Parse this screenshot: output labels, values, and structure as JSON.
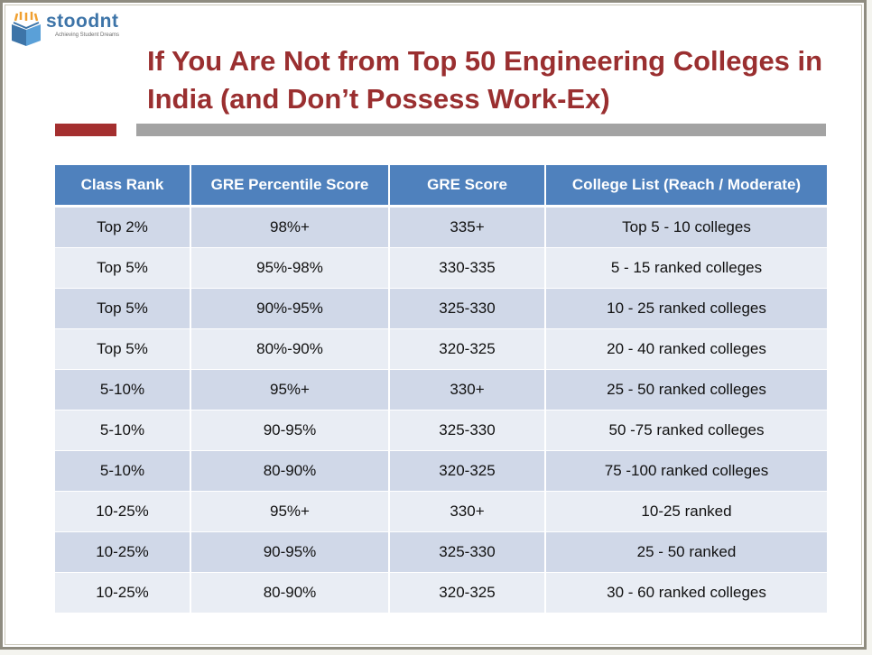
{
  "logo": {
    "name": "stoodnt",
    "tagline": "Achieving Student Dreams",
    "colors": [
      "#3d74a8",
      "#f0a030",
      "#5aa0d8"
    ]
  },
  "title": {
    "line1": "If You Are Not from Top 50 Engineering Colleges in",
    "line2": "India (and Don’t Possess Work-Ex)"
  },
  "colors": {
    "title": "#9a2f30",
    "accent_bar": "#a42f2f",
    "divider_bar": "#a3a3a3",
    "header_bg": "#4f81bd",
    "row_odd": "#d0d8e8",
    "row_even": "#e9edf4"
  },
  "table": {
    "headers": [
      "Class Rank",
      "GRE Percentile Score",
      "GRE Score",
      "College List (Reach / Moderate)"
    ],
    "rows": [
      [
        "Top 2%",
        "98%+",
        "335+",
        "Top 5 - 10 colleges"
      ],
      [
        "Top 5%",
        "95%-98%",
        "330-335",
        "5 - 15 ranked colleges"
      ],
      [
        "Top 5%",
        "90%-95%",
        "325-330",
        "10 - 25 ranked colleges"
      ],
      [
        "Top 5%",
        "80%-90%",
        "320-325",
        "20 - 40 ranked colleges"
      ],
      [
        "5-10%",
        "95%+",
        "330+",
        "25 - 50 ranked colleges"
      ],
      [
        "5-10%",
        "90-95%",
        "325-330",
        "50 -75 ranked colleges"
      ],
      [
        "5-10%",
        "80-90%",
        "320-325",
        "75 -100 ranked colleges"
      ],
      [
        "10-25%",
        "95%+",
        "330+",
        "10-25 ranked"
      ],
      [
        "10-25%",
        "90-95%",
        "325-330",
        "25 - 50 ranked"
      ],
      [
        "10-25%",
        "80-90%",
        "320-325",
        "30 - 60 ranked colleges"
      ]
    ]
  }
}
